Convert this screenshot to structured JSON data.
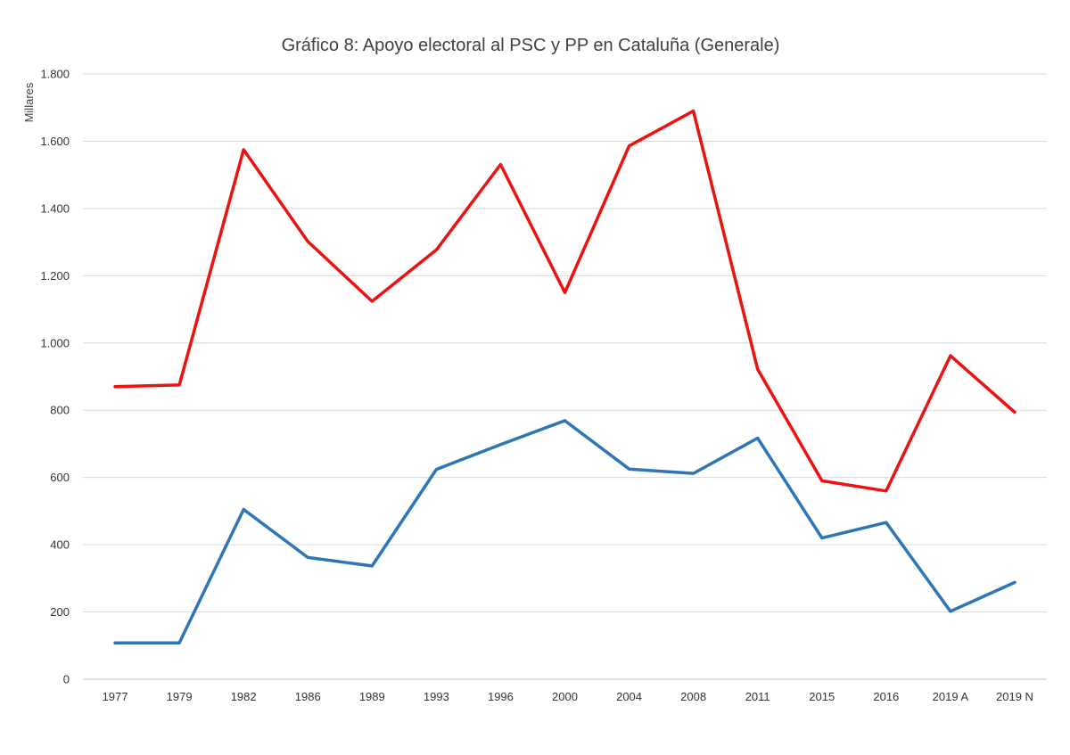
{
  "chart_data": {
    "type": "line",
    "title": "Gráfico 8: Apoyo electoral al PSC y PP en Cataluña (Generale)",
    "xlabel": "",
    "ylabel": "Millares",
    "ylim": [
      0,
      1800
    ],
    "yticks": [
      0,
      200,
      400,
      600,
      800,
      1000,
      1200,
      1400,
      1600,
      1800
    ],
    "ytick_labels": [
      "0",
      "200",
      "400",
      "600",
      "800",
      "1.000",
      "1.200",
      "1.400",
      "1.600",
      "1.800"
    ],
    "categories": [
      "1977",
      "1979",
      "1982",
      "1986",
      "1989",
      "1993",
      "1996",
      "2000",
      "2004",
      "2008",
      "2011",
      "2015",
      "2016",
      "2019 A",
      "2019 N"
    ],
    "grid": true,
    "legend": "none",
    "series": [
      {
        "color": "#ee1111",
        "values": [
          870,
          875,
          1575,
          1302,
          1124,
          1277,
          1531,
          1150,
          1586,
          1690,
          922,
          590,
          560,
          962,
          794
        ]
      },
      {
        "color": "#2e75b6",
        "values": [
          108,
          108,
          505,
          362,
          337,
          624,
          698,
          769,
          625,
          612,
          717,
          420,
          466,
          202,
          288
        ]
      }
    ]
  }
}
